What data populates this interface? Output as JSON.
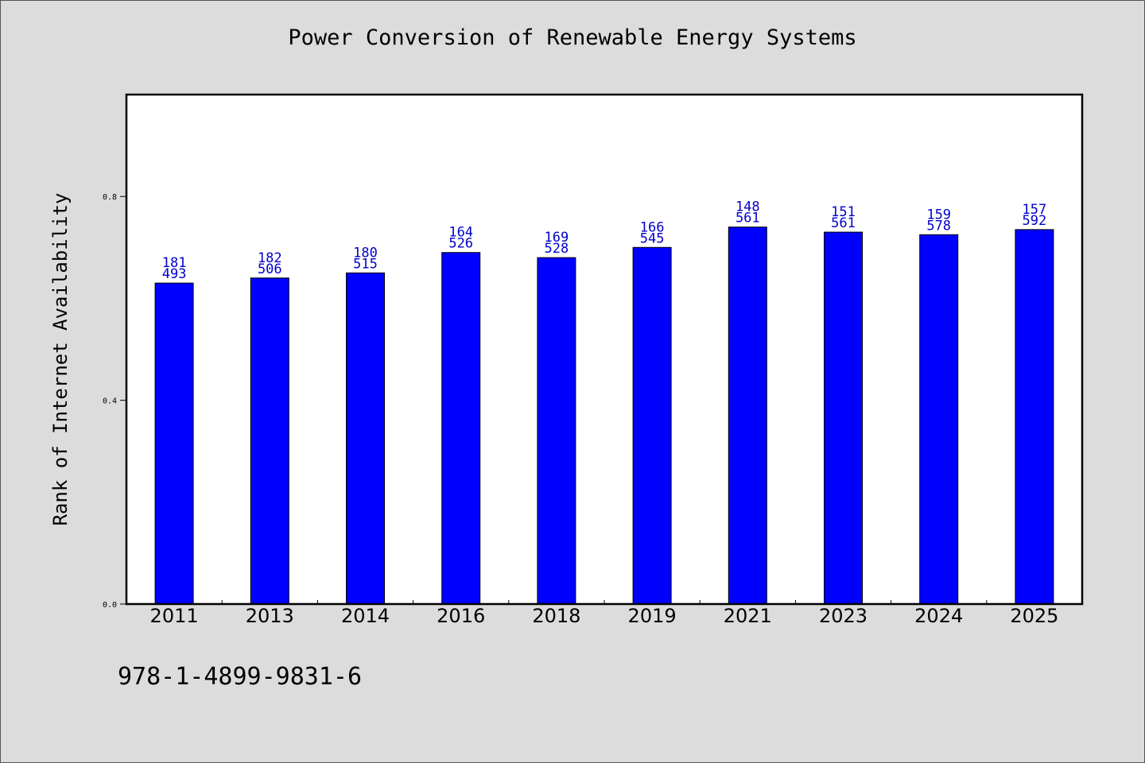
{
  "chart_data": {
    "type": "bar",
    "title": "Power Conversion of Renewable Energy Systems",
    "xlabel": "",
    "ylabel": "Rank of Internet Availability",
    "categories": [
      "2011",
      "2013",
      "2014",
      "2016",
      "2018",
      "2019",
      "2021",
      "2023",
      "2024",
      "2025"
    ],
    "values": [
      0.63,
      0.64,
      0.65,
      0.69,
      0.68,
      0.7,
      0.74,
      0.73,
      0.725,
      0.735
    ],
    "labels_top": [
      "181",
      "182",
      "180",
      "164",
      "169",
      "166",
      "148",
      "151",
      "159",
      "157"
    ],
    "labels_bottom": [
      "493",
      "506",
      "515",
      "526",
      "528",
      "545",
      "561",
      "561",
      "578",
      "592"
    ],
    "ylim": [
      0,
      1.0
    ],
    "yticks": [
      0.0,
      0.4,
      0.8
    ],
    "ytick_labels": [
      "0.0",
      "0.4",
      "0.8"
    ],
    "grid": false,
    "legend": "none",
    "colors": {
      "bar": "#0000ff",
      "data_label": "#0000cc",
      "plot_background": "#ffffff",
      "page_background": "#dcdcdc"
    }
  },
  "footnote": "978-1-4899-9831-6"
}
